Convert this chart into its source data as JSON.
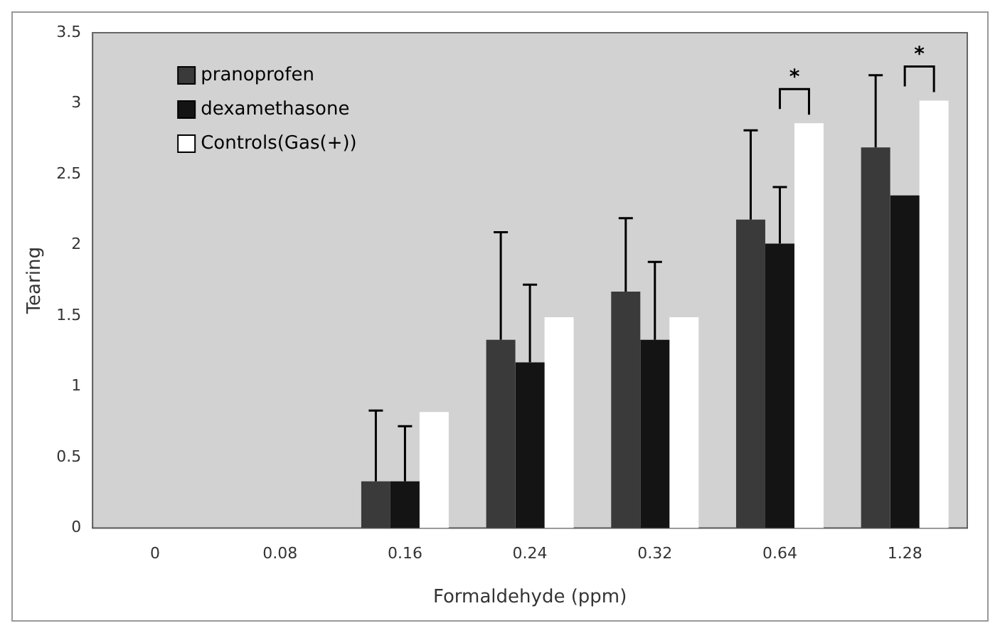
{
  "chart_data": {
    "type": "bar",
    "xlabel": "Formaldehyde (ppm)",
    "ylabel": "Tearing",
    "categories": [
      "0",
      "0.08",
      "0.16",
      "0.24",
      "0.32",
      "0.64",
      "1.28"
    ],
    "series": [
      {
        "name": "pranoprofen",
        "color": "#3a3a3a",
        "values": [
          0,
          0,
          0.33,
          1.33,
          1.67,
          2.18,
          2.69
        ],
        "errors": [
          null,
          null,
          [
            0.33,
            0.83
          ],
          [
            1.33,
            2.09
          ],
          [
            1.67,
            2.19
          ],
          [
            2.18,
            2.81
          ],
          [
            2.69,
            3.2
          ]
        ]
      },
      {
        "name": "dexamethasone",
        "color": "#141414",
        "values": [
          0,
          0,
          0.33,
          1.17,
          1.33,
          2.01,
          2.35
        ],
        "errors": [
          null,
          null,
          [
            0.33,
            0.72
          ],
          [
            1.17,
            1.72
          ],
          [
            1.33,
            1.88
          ],
          [
            2.01,
            2.41
          ],
          null
        ]
      },
      {
        "name": "Controls(Gas(+))",
        "color": "#ffffff",
        "values": [
          0,
          0,
          0.82,
          1.49,
          1.49,
          2.86,
          3.02
        ]
      }
    ],
    "ylim": [
      0,
      3.5
    ],
    "yticks": [
      0,
      0.5,
      1,
      1.5,
      2,
      2.5,
      3,
      3.5
    ],
    "grid": false,
    "legend": "top left",
    "annotations": [
      "*",
      "*"
    ]
  }
}
